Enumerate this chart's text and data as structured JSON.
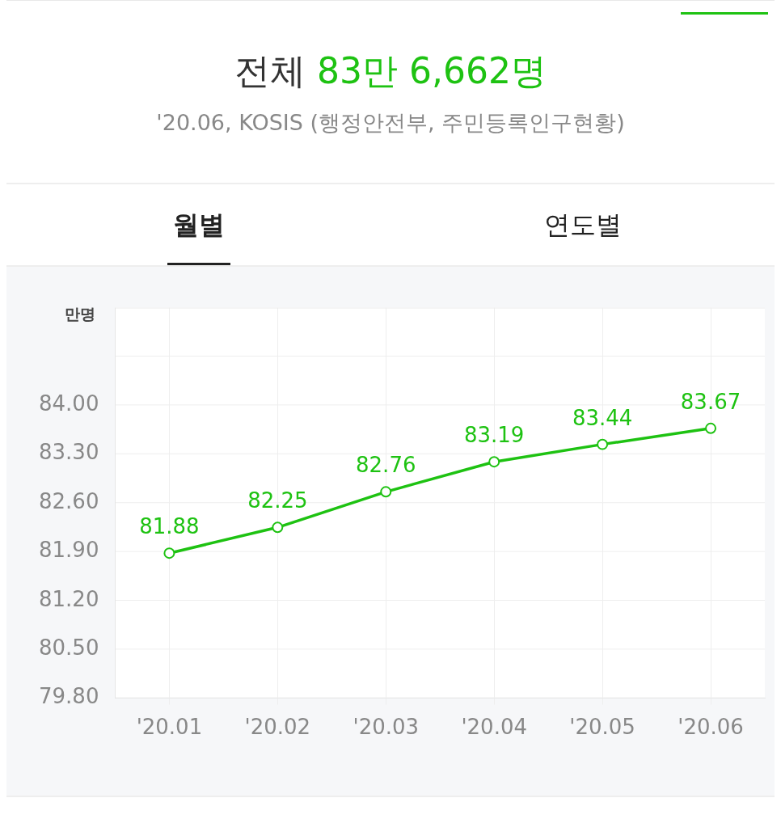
{
  "chart_data": {
    "type": "line",
    "title": "전체 83만 6,662명",
    "subtitle": "'20.06, KOSIS (행정안전부, 주민등록인구현황)",
    "ylabel": "만명",
    "annotations": [
      "월별",
      "연도별"
    ],
    "categories": [
      "'20.01",
      "'20.02",
      "'20.03",
      "'20.04",
      "'20.05",
      "'20.06"
    ],
    "series": [
      {
        "color": "#1ec212",
        "values": [
          81.88,
          82.25,
          82.76,
          83.19,
          83.44,
          83.67
        ]
      }
    ],
    "ylim": [
      79.8,
      85.4
    ],
    "yticks": [
      "79.80",
      "80.50",
      "81.20",
      "81.90",
      "82.60",
      "83.30",
      "84.00",
      {
        "value": 84.7,
        "label": null
      },
      {
        "value": 85.4,
        "label": null
      }
    ],
    "grid": true,
    "legend": false,
    "marker": "circle",
    "line_style": "solid",
    "data_labels": true
  }
}
